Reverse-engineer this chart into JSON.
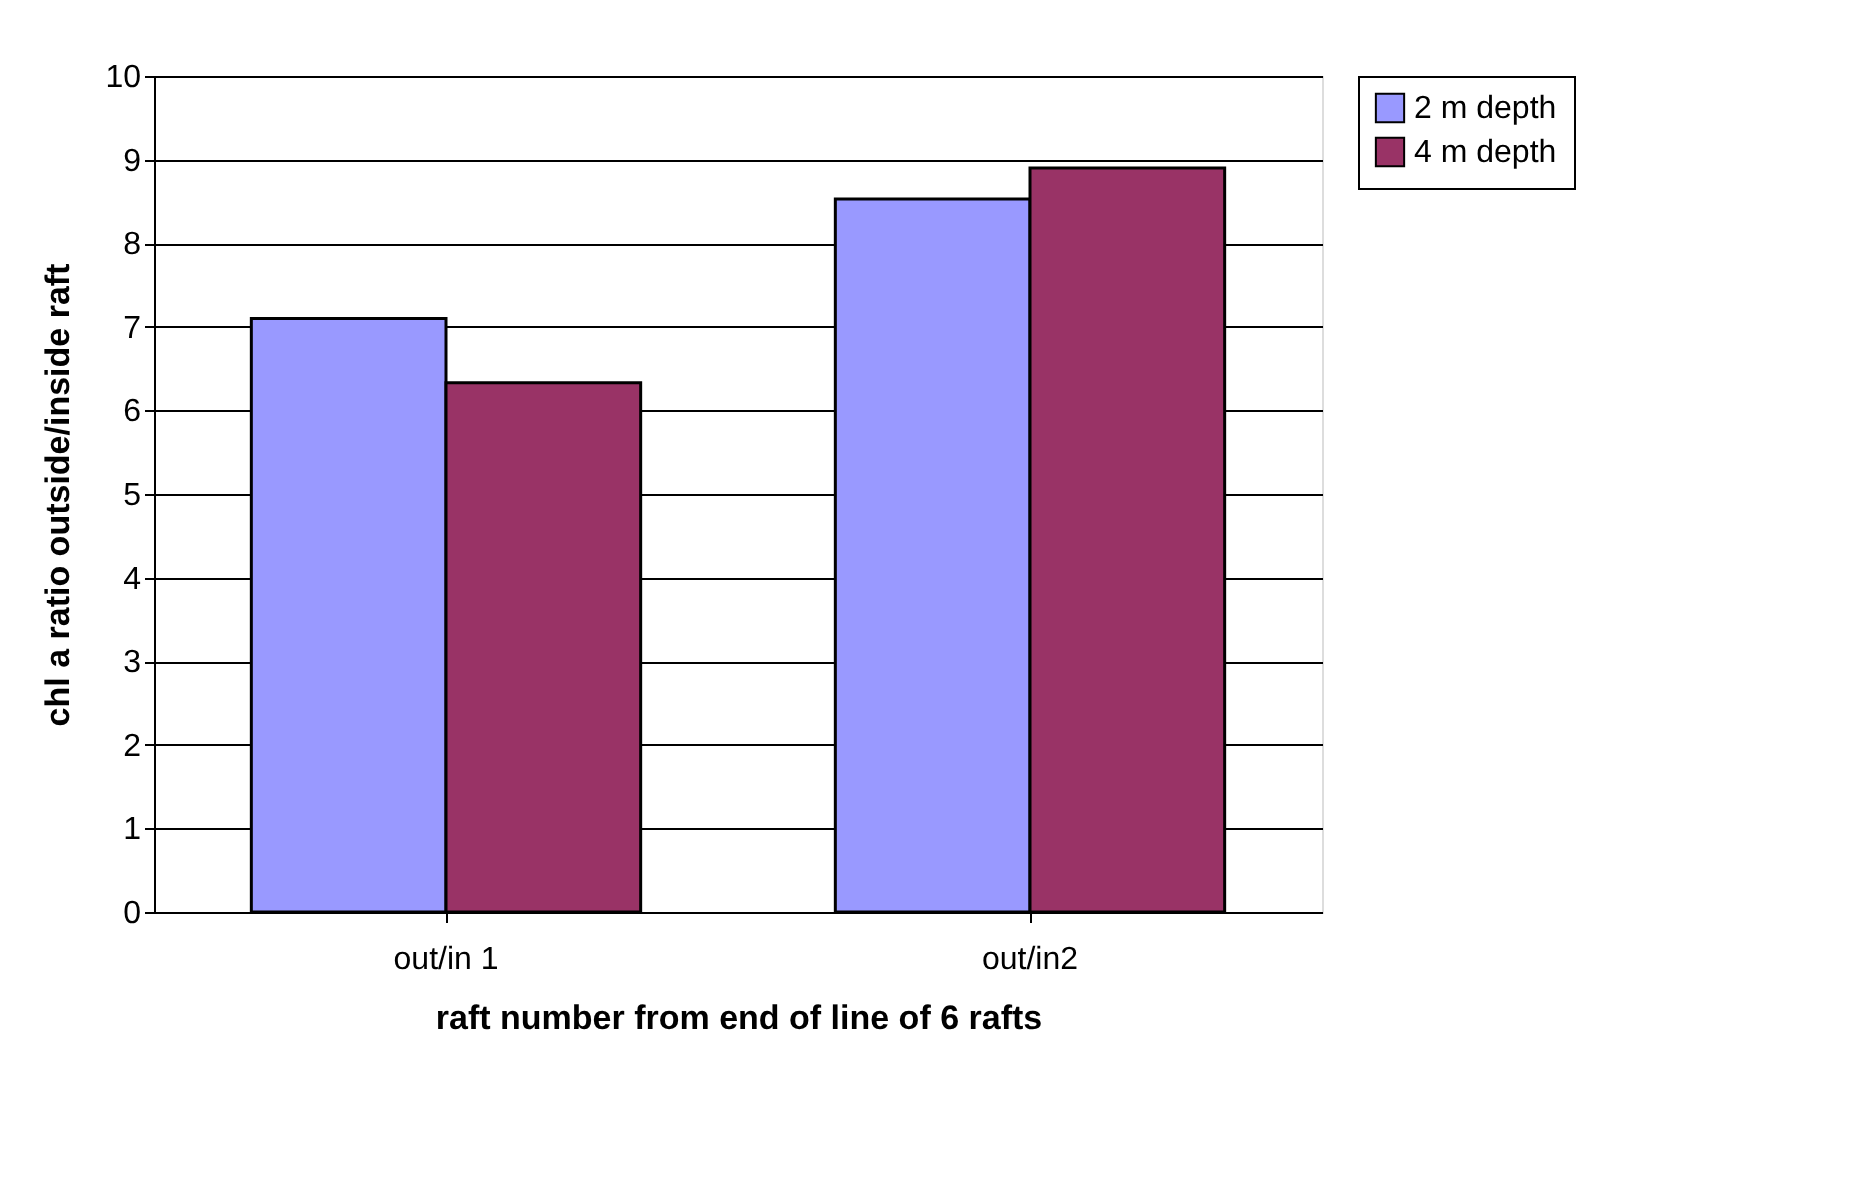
{
  "chart_data": {
    "type": "bar",
    "xlabel": "raft number from end of line of 6 rafts",
    "ylabel": "chl a ratio outside/inside raft",
    "categories": [
      "out/in 1",
      "out/in2"
    ],
    "series": [
      {
        "name": "2 m depth",
        "color": "#9999ff",
        "values": [
          7.1,
          8.53
        ]
      },
      {
        "name": "4 m depth",
        "color": "#993366",
        "values": [
          6.33,
          8.9
        ]
      }
    ],
    "ylim": [
      0,
      10
    ],
    "yticks": [
      0,
      1,
      2,
      3,
      4,
      5,
      6,
      7,
      8,
      9,
      10
    ],
    "grid": "y",
    "legend": "right"
  }
}
